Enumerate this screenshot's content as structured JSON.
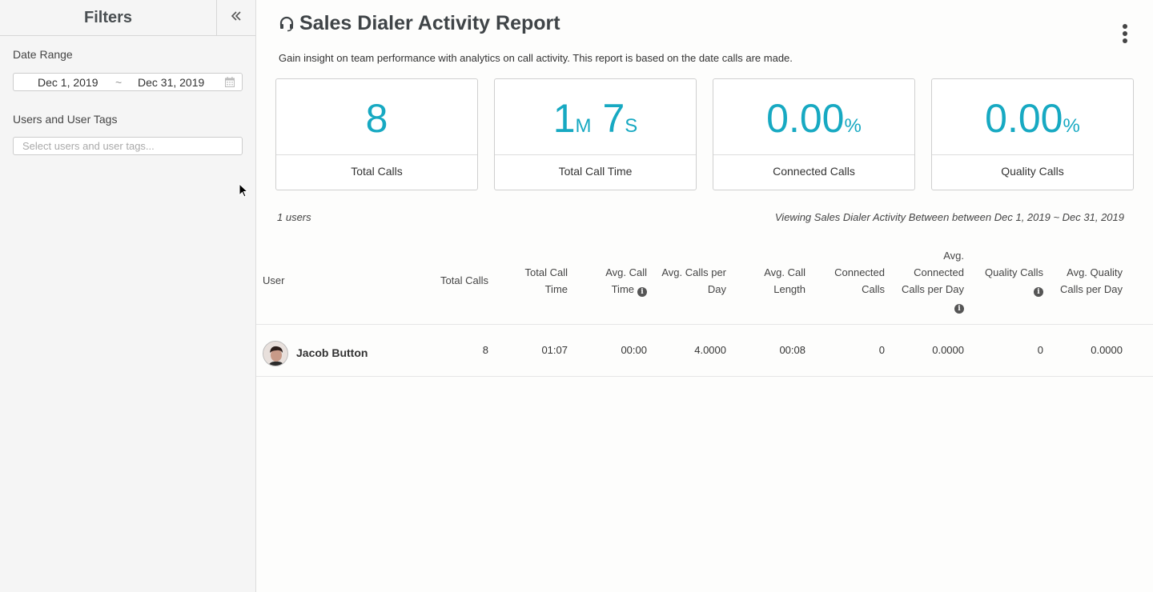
{
  "sidebar": {
    "title": "Filters",
    "date_range_label": "Date Range",
    "date_start": "Dec 1, 2019",
    "date_separator": "~",
    "date_end": "Dec 31, 2019",
    "users_label": "Users and User Tags",
    "users_placeholder": "Select users and user tags..."
  },
  "header": {
    "title": "Sales Dialer Activity Report",
    "subtitle": "Gain insight on team performance with analytics on call activity. This report is based on the date calls are made."
  },
  "cards": [
    {
      "value": "8",
      "label": "Total Calls"
    },
    {
      "value_min": "1",
      "unit_min": "M",
      "value_sec": "7",
      "unit_sec": "S",
      "label": "Total Call Time"
    },
    {
      "value": "0.00",
      "unit": "%",
      "label": "Connected Calls"
    },
    {
      "value": "0.00",
      "unit": "%",
      "label": "Quality Calls"
    }
  ],
  "summary": {
    "users_count": "1 users",
    "viewing": "Viewing Sales Dialer Activity Between between Dec 1, 2019 ~ Dec 31, 2019"
  },
  "table": {
    "headers": {
      "user": "User",
      "total_calls": "Total Calls",
      "total_call_time_1": "Total Call",
      "total_call_time_2": "Time",
      "avg_call_time_1": "Avg. Call",
      "avg_call_time_2": "Time",
      "avg_calls_per_day_1": "Avg. Calls per",
      "avg_calls_per_day_2": "Day",
      "avg_call_length_1": "Avg. Call",
      "avg_call_length_2": "Length",
      "connected_calls_1": "Connected",
      "connected_calls_2": "Calls",
      "avg_connected_1": "Avg.",
      "avg_connected_2": "Connected",
      "avg_connected_3": "Calls per Day",
      "quality_calls": "Quality Calls",
      "avg_quality_1": "Avg. Quality",
      "avg_quality_2": "Calls per Day"
    },
    "rows": [
      {
        "user": "Jacob Button",
        "total_calls": "8",
        "total_call_time": "01:07",
        "avg_call_time": "00:00",
        "avg_calls_per_day": "4.0000",
        "avg_call_length": "00:08",
        "connected_calls": "0",
        "avg_connected_calls_per_day": "0.0000",
        "quality_calls": "0",
        "avg_quality_calls_per_day": "0.0000"
      }
    ]
  },
  "colors": {
    "accent": "#17a9c2",
    "sidebar_bg": "#f5f5f5",
    "border": "#cfcfcf"
  },
  "icons": {
    "collapse": "double-chevron-left-icon",
    "calendar": "calendar-icon",
    "headset": "headset-icon",
    "more": "vertical-dots-icon",
    "info": "info-icon"
  }
}
